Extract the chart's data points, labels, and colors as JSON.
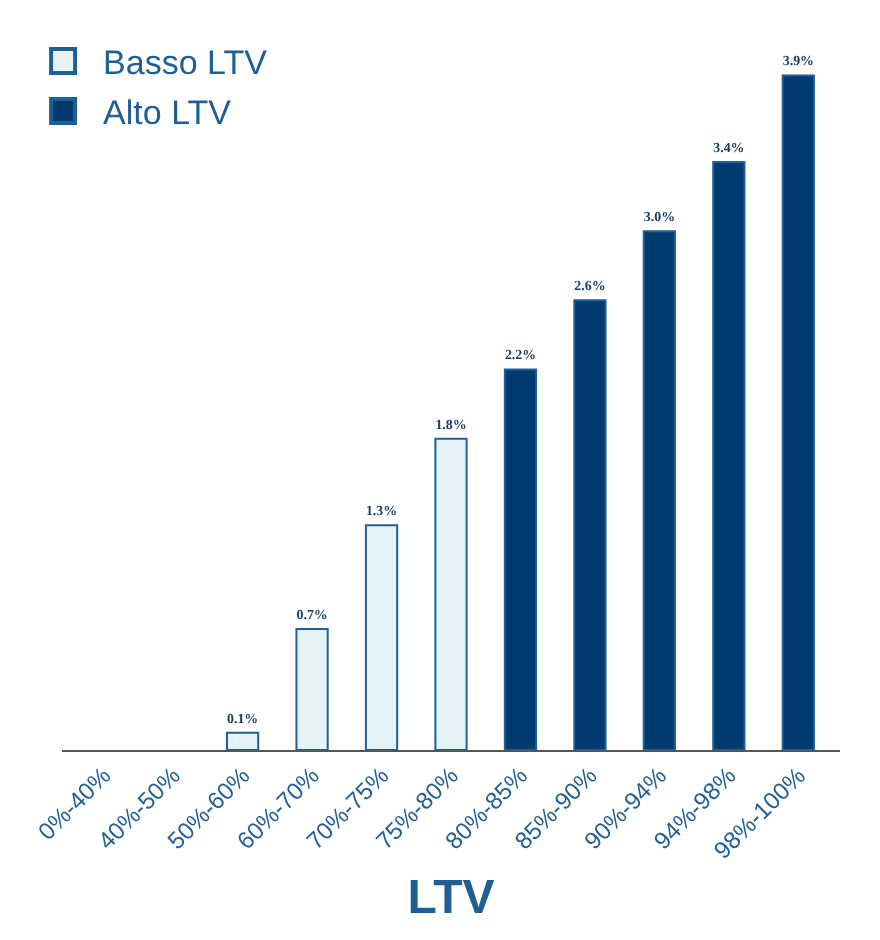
{
  "chart_data": {
    "type": "bar",
    "xlabel": "LTV",
    "categories": [
      "0%-40%",
      "40%-50%",
      "50%-60%",
      "60%-70%",
      "70%-75%",
      "75%-80%",
      "80%-85%",
      "85%-90%",
      "90%-94%",
      "94%-98%",
      "98%-100%"
    ],
    "series": [
      {
        "name": "Basso LTV",
        "color": "#e6f4f7",
        "values": [
          null,
          null,
          0.1,
          0.7,
          1.3,
          1.8,
          null,
          null,
          null,
          null,
          null
        ],
        "value_labels": [
          null,
          null,
          "0.1%",
          "0.7%",
          "1.3%",
          "1.8%",
          null,
          null,
          null,
          null,
          null
        ]
      },
      {
        "name": "Alto LTV",
        "color": "#003b6f",
        "values": [
          null,
          null,
          null,
          null,
          null,
          null,
          2.2,
          2.6,
          3.0,
          3.4,
          3.9
        ],
        "value_labels": [
          null,
          null,
          null,
          null,
          null,
          null,
          "2.2%",
          "2.6%",
          "3.0%",
          "3.4%",
          "3.9%"
        ]
      }
    ],
    "legend": "top left",
    "tick_labels": "x"
  }
}
